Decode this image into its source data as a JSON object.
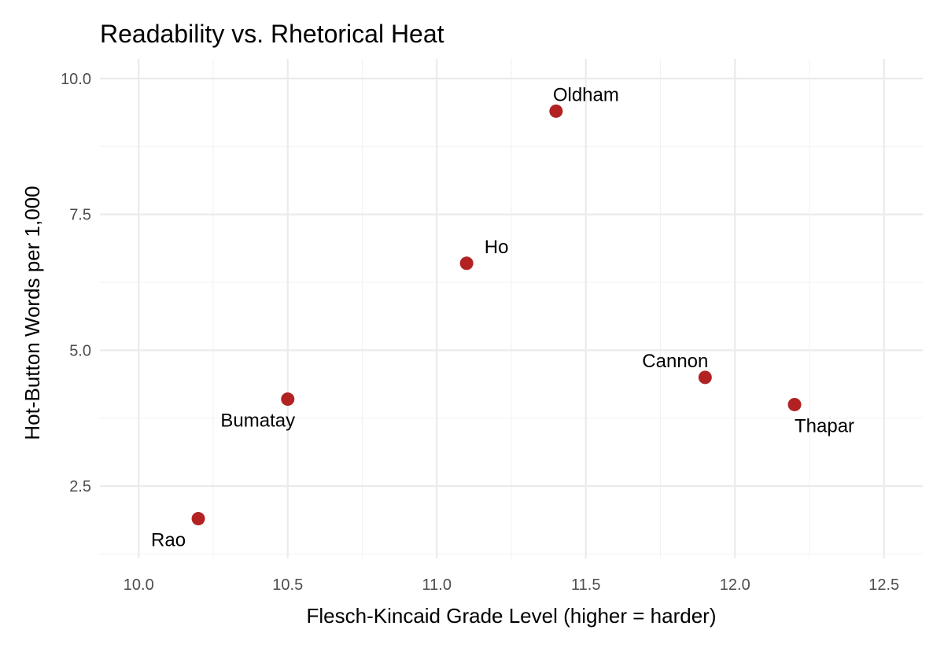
{
  "chart_data": {
    "type": "scatter",
    "title": "Readability vs. Rhetorical Heat",
    "xlabel": "Flesch-Kincaid Grade Level (higher = harder)",
    "ylabel": "Hot-Button Words per 1,000",
    "xlim": [
      9.87,
      12.63
    ],
    "ylim": [
      1.17,
      10.36
    ],
    "x_ticks": [
      10.0,
      10.5,
      11.0,
      11.5,
      12.0,
      12.5
    ],
    "x_tick_labels": [
      "10.0",
      "10.5",
      "11.0",
      "11.5",
      "12.0",
      "12.5"
    ],
    "y_ticks": [
      2.5,
      5.0,
      7.5,
      10.0
    ],
    "y_tick_labels": [
      "2.5",
      "5.0",
      "7.5",
      "10.0"
    ],
    "grid": true,
    "point_color": "#b22222",
    "points": [
      {
        "label": "Rao",
        "x": 10.2,
        "y": 1.9,
        "label_pos": "below-left"
      },
      {
        "label": "Bumatay",
        "x": 10.5,
        "y": 4.1,
        "label_pos": "below-left"
      },
      {
        "label": "Ho",
        "x": 11.1,
        "y": 6.6,
        "label_pos": "above-right"
      },
      {
        "label": "Oldham",
        "x": 11.4,
        "y": 9.4,
        "label_pos": "above-right"
      },
      {
        "label": "Cannon",
        "x": 11.9,
        "y": 4.5,
        "label_pos": "above-left"
      },
      {
        "label": "Thapar",
        "x": 12.2,
        "y": 4.0,
        "label_pos": "below-right"
      }
    ]
  }
}
